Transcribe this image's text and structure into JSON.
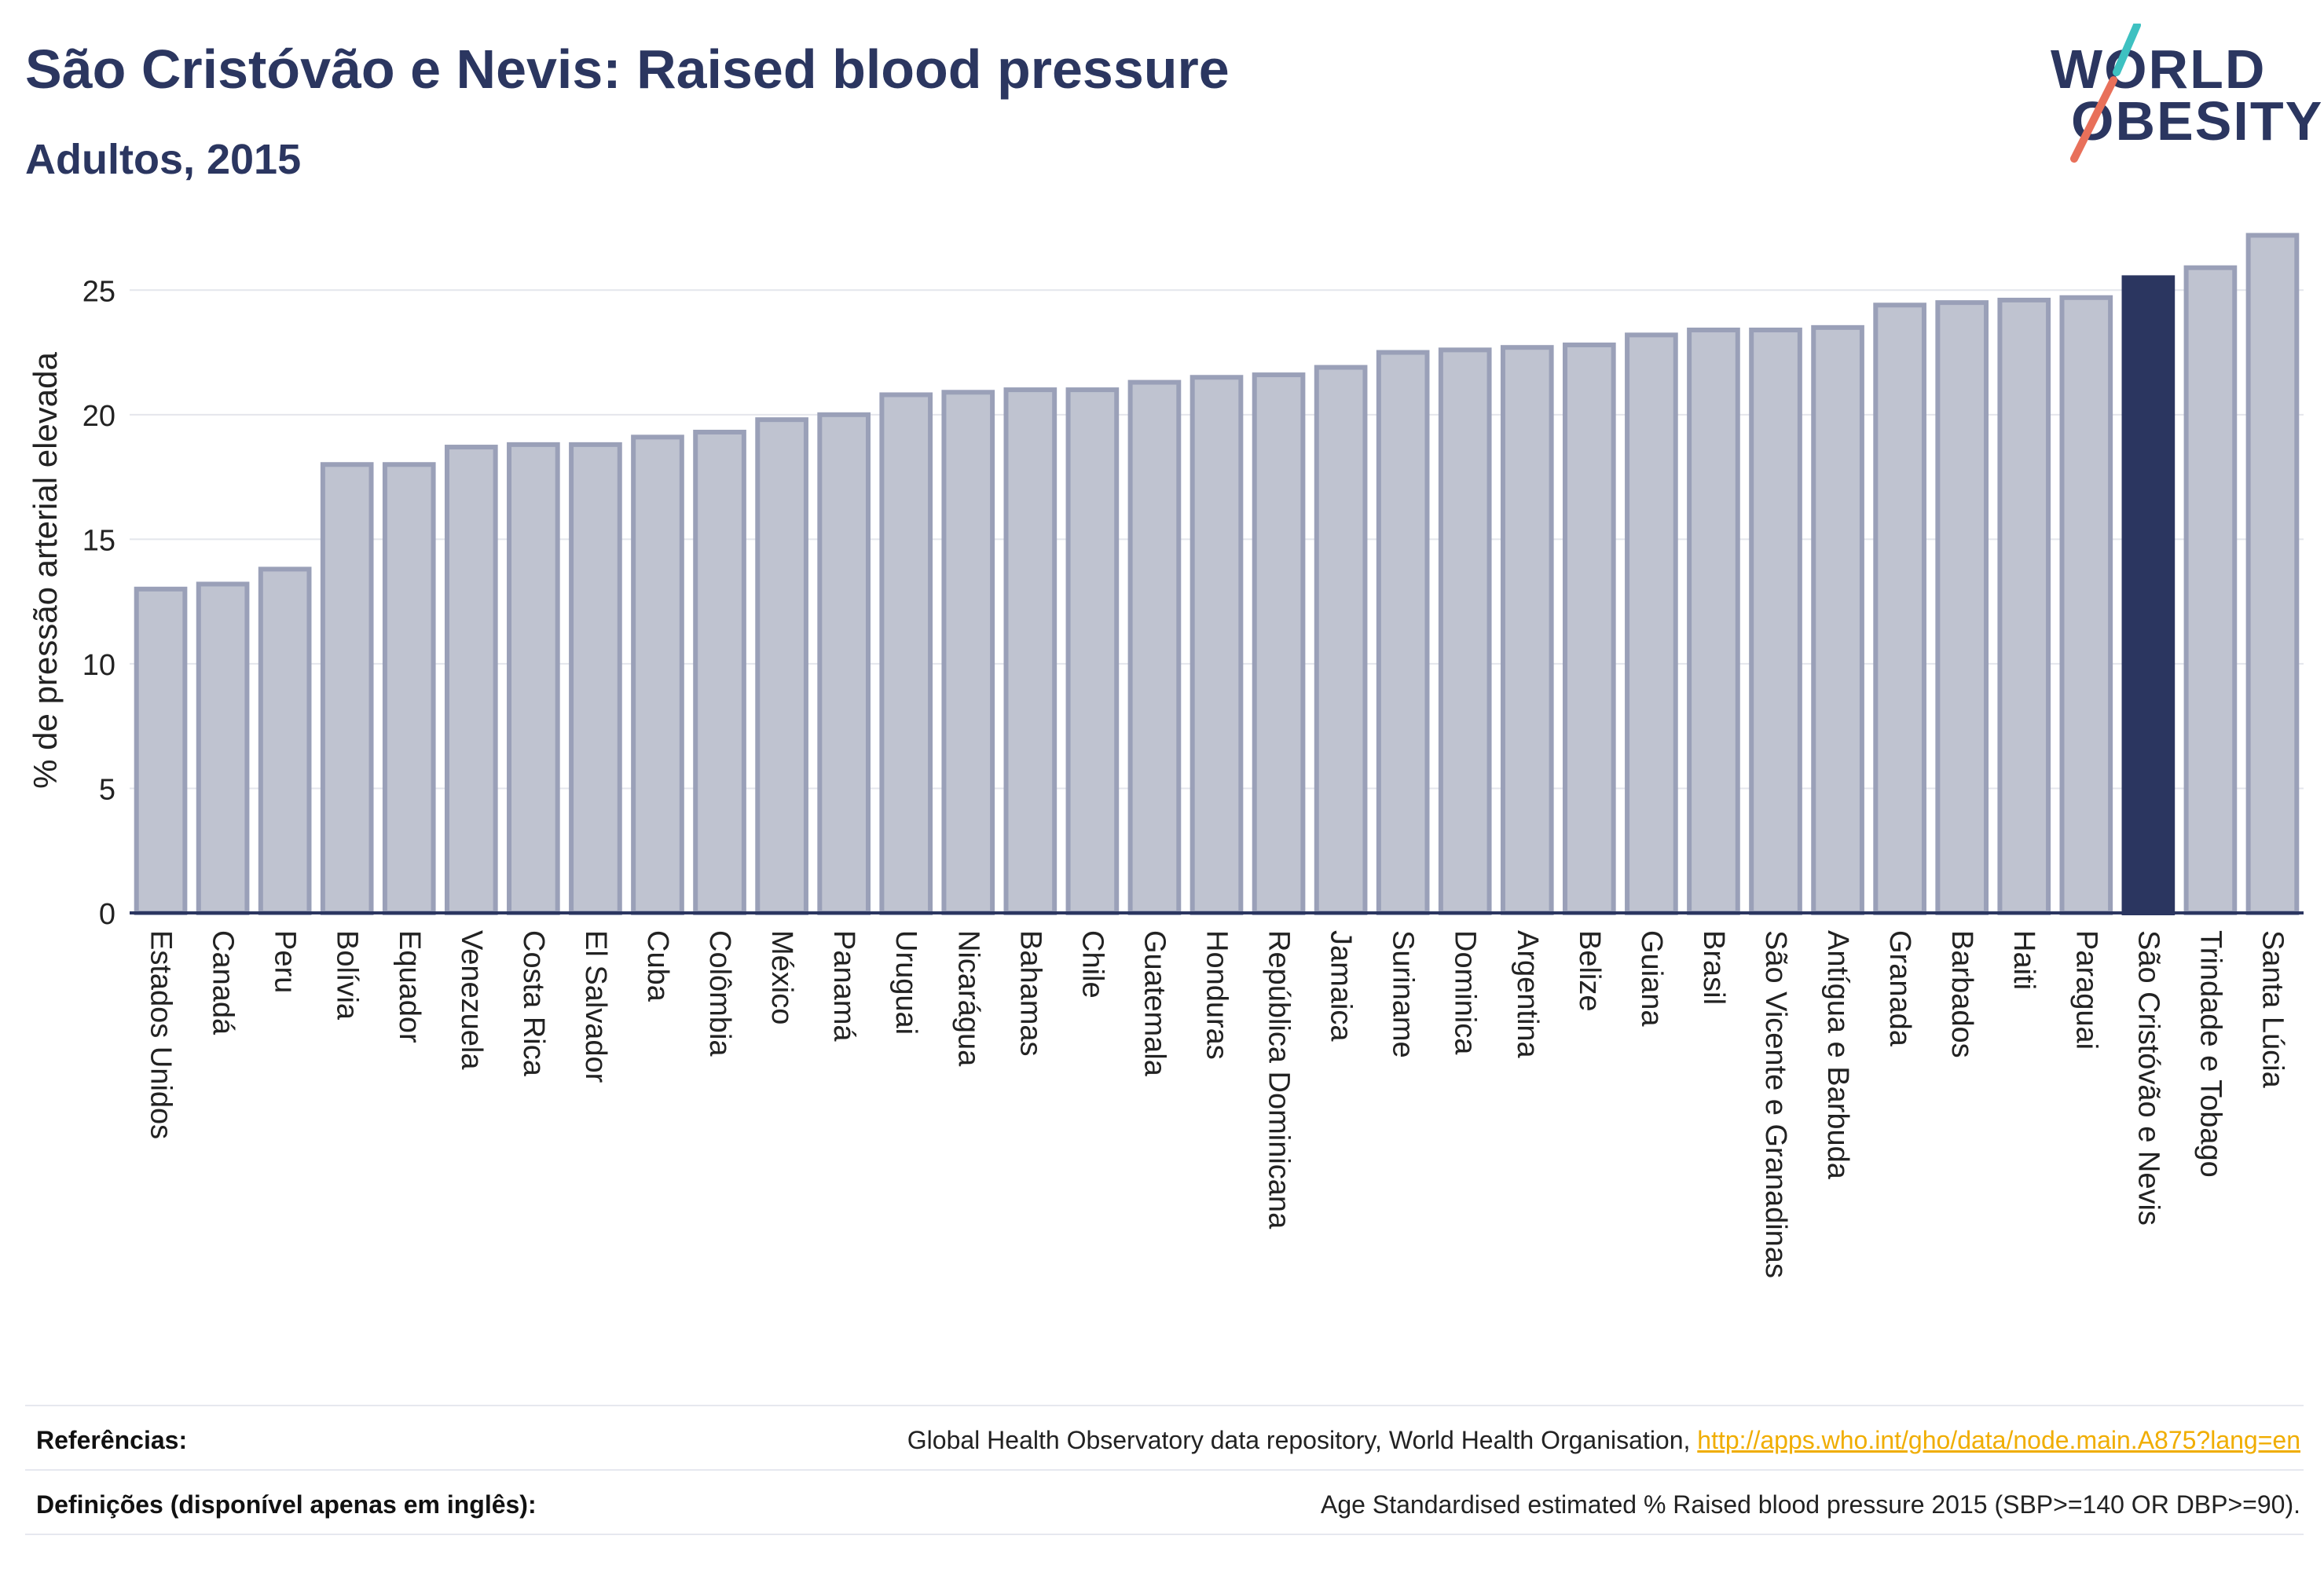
{
  "header": {
    "title": "São Cristóvão e Nevis: Raised blood pressure",
    "subtitle": "Adultos, 2015"
  },
  "logo": {
    "line1": "WORLD",
    "line2": "OBESITY",
    "colors": {
      "text": "#2b3660",
      "slash_top": "#3ec1c1",
      "slash_bottom": "#e8705a"
    }
  },
  "chart_data": {
    "type": "bar",
    "title": "",
    "xlabel": "",
    "ylabel": "% de pressão arterial elevada",
    "ylim": [
      0,
      27.5
    ],
    "yticks": [
      0,
      5,
      10,
      15,
      20,
      25
    ],
    "grid": true,
    "highlight": "São Cristóvão e Nevis",
    "colors": {
      "bar": "#bfc3d0",
      "bar_edge": "#9aa0b8",
      "highlight": "#2b3660"
    },
    "categories": [
      "Estados Unidos",
      "Canadá",
      "Peru",
      "Bolívia",
      "Equador",
      "Venezuela",
      "Costa Rica",
      "El Salvador",
      "Cuba",
      "Colômbia",
      "México",
      "Panamá",
      "Uruguai",
      "Nicarágua",
      "Bahamas",
      "Chile",
      "Guatemala",
      "Honduras",
      "República Dominicana",
      "Jamaica",
      "Suriname",
      "Dominica",
      "Argentina",
      "Belize",
      "Guiana",
      "Brasil",
      "São Vicente e Granadinas",
      "Antígua e Barbuda",
      "Granada",
      "Barbados",
      "Haiti",
      "Paraguai",
      "São Cristóvão e Nevis",
      "Trindade e Tobago",
      "Santa Lúcia"
    ],
    "values": [
      13.0,
      13.2,
      13.8,
      18.0,
      18.0,
      18.7,
      18.8,
      18.8,
      19.1,
      19.3,
      19.8,
      20.0,
      20.8,
      20.9,
      21.0,
      21.0,
      21.3,
      21.5,
      21.6,
      21.9,
      22.5,
      22.6,
      22.7,
      22.8,
      23.2,
      23.4,
      23.4,
      23.5,
      24.4,
      24.5,
      24.6,
      24.7,
      25.5,
      25.9,
      27.2
    ]
  },
  "footer": {
    "references_label": "Referências:",
    "references_text": "Global Health Observatory data repository, World Health Organisation, ",
    "references_link": "http://apps.who.int/gho/data/node.main.A875?lang=en",
    "definitions_label": "Definições (disponível apenas em inglês):",
    "definitions_text": "Age Standardised estimated % Raised blood pressure 2015 (SBP>=140 OR DBP>=90)."
  }
}
